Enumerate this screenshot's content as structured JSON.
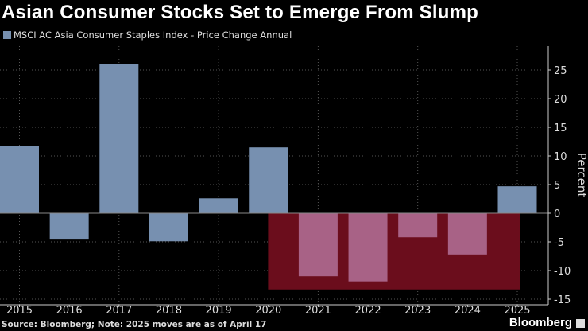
{
  "title": "Asian Consumer Stocks Set to Emerge From Slump",
  "footer": "Source: Bloomberg; Note: 2025 moves are as of April 17",
  "brand": "Bloomberg",
  "colors": {
    "bar_positive": "#7790b0",
    "bar_highlight": "#a86286",
    "highlight_band": "#6b0d1c"
  },
  "chart_data": {
    "type": "bar",
    "title": "Asian Consumer Stocks Set to Emerge From Slump",
    "legend": "MSCI AC Asia Consumer Staples Index - Price Change Annual",
    "legend_placement": "top-left",
    "ylabel": "Percent",
    "xlabel": "",
    "y_axis_side": "right",
    "ylim": [
      -15,
      29
    ],
    "yticks": [
      -15,
      -10,
      -5,
      0,
      5,
      10,
      15,
      20,
      25
    ],
    "grid": true,
    "categories": [
      "2015",
      "2016",
      "2017",
      "2018",
      "2019",
      "2020",
      "2021",
      "2022",
      "2023",
      "2024",
      "2025"
    ],
    "values": [
      11.8,
      -4.6,
      26.1,
      -4.9,
      2.6,
      11.5,
      -11.0,
      -11.9,
      -4.2,
      -7.2,
      4.7
    ],
    "highlight": {
      "from": "2021",
      "to": "2024",
      "shaded_to": -13.3
    }
  }
}
